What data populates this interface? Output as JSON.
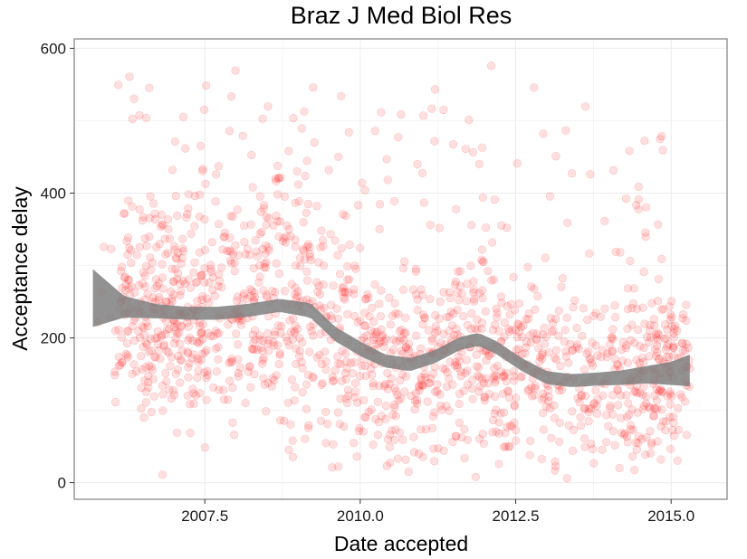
{
  "chart_data": {
    "type": "scatter",
    "title": "Braz J Med Biol Res",
    "xlabel": "Date accepted",
    "ylabel": "Acceptance delay",
    "xlim": [
      2005.4,
      2015.9
    ],
    "ylim": [
      -23,
      613
    ],
    "x_ticks": [
      2007.5,
      2010.0,
      2012.5,
      2015.0
    ],
    "x_tick_labels": [
      "2007.5",
      "2010.0",
      "2012.5",
      "2015.0"
    ],
    "y_ticks": [
      0,
      200,
      400,
      600
    ],
    "y_tick_labels": [
      "0",
      "200",
      "400",
      "600"
    ],
    "grid": true,
    "point_color": "#ff0000",
    "point_opacity": 0.12,
    "band_color": "#7f7f7f",
    "smooth_center": {
      "x": [
        5.7,
        6.2,
        6.7,
        7.2,
        7.7,
        8.2,
        8.7,
        9.2,
        9.6,
        10.0,
        10.4,
        10.8,
        11.2,
        11.6,
        11.9,
        12.2,
        12.6,
        13.0,
        13.4,
        13.8,
        14.2,
        14.6,
        15.0,
        15.3
      ],
      "y": [
        255,
        243,
        237,
        234,
        234,
        238,
        245,
        238,
        205,
        185,
        168,
        163,
        174,
        192,
        198,
        186,
        163,
        145,
        141,
        143,
        145,
        149,
        151,
        155
      ]
    },
    "smooth_halfwidth": {
      "x": [
        5.7,
        6.2,
        6.7,
        7.2,
        7.7,
        8.2,
        8.7,
        9.2,
        9.6,
        10.0,
        10.4,
        10.8,
        11.2,
        11.6,
        11.9,
        12.2,
        12.6,
        13.0,
        13.4,
        13.8,
        14.2,
        14.6,
        15.0,
        15.3
      ],
      "y": [
        40,
        15,
        10,
        9,
        9,
        9,
        9,
        10,
        10,
        10,
        9,
        9,
        9,
        9,
        9,
        9,
        9,
        9,
        9,
        9,
        10,
        12,
        16,
        22
      ]
    },
    "point_density": {
      "x": [
        5.8,
        6.3,
        6.8,
        7.3,
        7.8,
        8.3,
        8.8,
        9.3,
        9.8,
        10.3,
        10.8,
        11.3,
        11.8,
        12.3,
        12.8,
        13.3,
        13.8,
        14.3,
        14.8,
        15.2
      ],
      "y": [
        8,
        90,
        120,
        120,
        80,
        90,
        90,
        80,
        80,
        90,
        90,
        80,
        90,
        90,
        70,
        60,
        60,
        90,
        110,
        50
      ]
    },
    "point_spread": {
      "x": [
        6,
        8,
        9,
        10,
        11,
        12,
        13,
        14,
        15
      ],
      "y": [
        80,
        95,
        100,
        80,
        75,
        85,
        75,
        70,
        65
      ]
    }
  }
}
